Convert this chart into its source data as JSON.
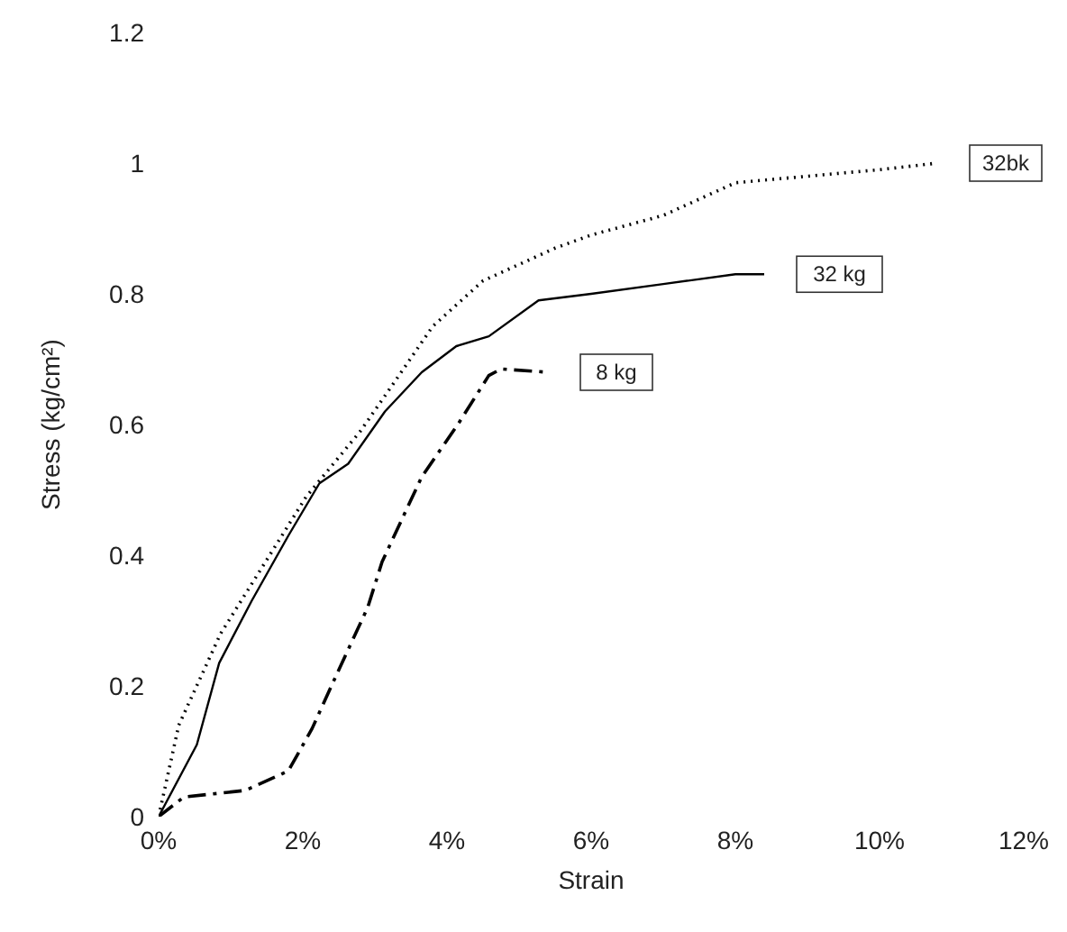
{
  "chart_data": {
    "type": "line",
    "xlabel": "Strain",
    "ylabel": "Stress (kg/cm²)",
    "xlim": [
      0,
      12
    ],
    "ylim": [
      0,
      1.2
    ],
    "xticks": [
      {
        "value": 0,
        "label": "0%"
      },
      {
        "value": 2,
        "label": "2%"
      },
      {
        "value": 4,
        "label": "4%"
      },
      {
        "value": 6,
        "label": "6%"
      },
      {
        "value": 8,
        "label": "8%"
      },
      {
        "value": 10,
        "label": "10%"
      },
      {
        "value": 12,
        "label": "12%"
      }
    ],
    "yticks": [
      0,
      0.2,
      0.4,
      0.6,
      0.8,
      1,
      1.2
    ],
    "grid": false,
    "legend": false,
    "marker": "none",
    "series": [
      {
        "name": "32bk",
        "color": "#000000",
        "line_style": "dotted",
        "x": [
          0,
          0.28,
          0.86,
          2.05,
          2.8,
          3.24,
          3.8,
          4.5,
          5.5,
          6,
          7,
          8,
          9,
          10,
          10.8
        ],
        "values": [
          0,
          0.14,
          0.28,
          0.49,
          0.59,
          0.66,
          0.75,
          0.82,
          0.87,
          0.89,
          0.92,
          0.97,
          0.98,
          0.99,
          1.0
        ]
      },
      {
        "name": "32 kg",
        "color": "#000000",
        "line_style": "solid",
        "x": [
          0,
          0.53,
          0.84,
          1.29,
          1.8,
          2.23,
          2.63,
          3.14,
          3.65,
          4.13,
          4.58,
          5.27,
          6,
          7,
          8,
          8.4
        ],
        "values": [
          0,
          0.11,
          0.235,
          0.33,
          0.43,
          0.51,
          0.54,
          0.62,
          0.68,
          0.72,
          0.735,
          0.79,
          0.8,
          0.815,
          0.83,
          0.83
        ]
      },
      {
        "name": "8 kg",
        "color": "#000000",
        "line_style": "dashed",
        "x": [
          0,
          0.35,
          1.2,
          1.8,
          2.13,
          2.48,
          2.9,
          3.1,
          3.65,
          4.15,
          4.58,
          4.75,
          5.4
        ],
        "values": [
          0,
          0.03,
          0.04,
          0.07,
          0.135,
          0.22,
          0.32,
          0.39,
          0.52,
          0.6,
          0.675,
          0.685,
          0.68
        ]
      }
    ]
  }
}
